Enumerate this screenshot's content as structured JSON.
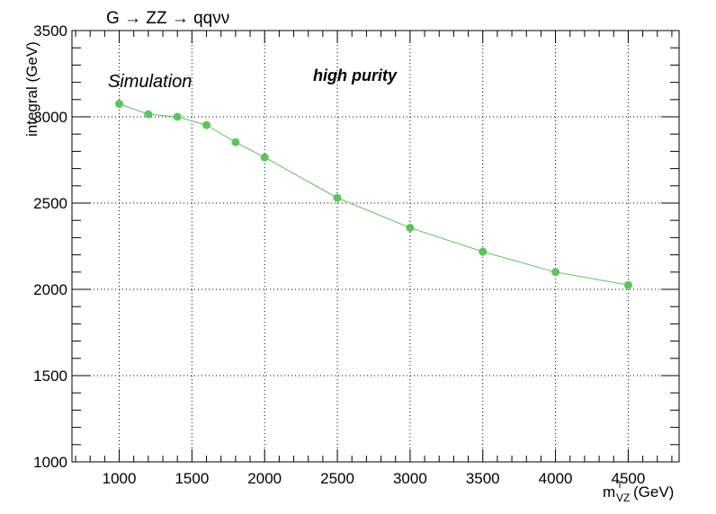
{
  "chart_data": {
    "type": "line",
    "title": "G → ZZ → qqνν",
    "xlabel_main": "m",
    "xlabel_sup": "T",
    "xlabel_sub": "VZ",
    "xlabel_unit": "(GeV)",
    "ylabel": "integral (GeV)",
    "annotations": [
      "Simulation",
      "high purity"
    ],
    "xlim": [
      675,
      4850
    ],
    "ylim": [
      1000,
      3500
    ],
    "x_ticks": [
      1000,
      1500,
      2000,
      2500,
      3000,
      3500,
      4000,
      4500
    ],
    "y_ticks": [
      1000,
      1500,
      2000,
      2500,
      3000,
      3500
    ],
    "grid": true,
    "series": [
      {
        "color": "#5cc45c",
        "x": [
          1000,
          1200,
          1400,
          1600,
          1800,
          2000,
          2500,
          3000,
          3500,
          4000,
          4500
        ],
        "values": [
          3075,
          3015,
          3000,
          2952,
          2853,
          2765,
          2530,
          2357,
          2218,
          2100,
          2025
        ]
      }
    ]
  }
}
